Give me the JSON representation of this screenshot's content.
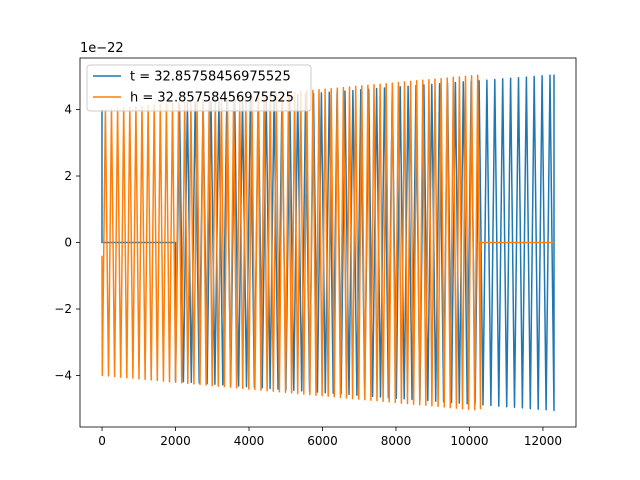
{
  "chart_data": {
    "type": "line",
    "title": "",
    "xlabel": "",
    "ylabel": "",
    "y_offset_label": "1e−22",
    "xlim": [
      -600,
      12900
    ],
    "ylim": [
      -5.55,
      5.55
    ],
    "x_ticks": [
      0,
      2000,
      4000,
      6000,
      8000,
      10000,
      12000
    ],
    "x_tick_labels": [
      "0",
      "2000",
      "4000",
      "6000",
      "8000",
      "10000",
      "12000"
    ],
    "y_ticks": [
      -4,
      -2,
      0,
      2,
      4
    ],
    "y_tick_labels": [
      "−4",
      "−2",
      "0",
      "2",
      "4"
    ],
    "grid": false,
    "legend_position": "upper-left",
    "series": [
      {
        "name": "t = 32.85758456975525",
        "color": "#1f77b4",
        "description_points": {
          "x_start": 0,
          "x_end": 12300,
          "zero_segment": [
            0,
            2000
          ],
          "amplitude_start": 4.0,
          "amplitude_end": 5.05
        }
      },
      {
        "name": "h = 32.85758456975525",
        "color": "#ff7f0e",
        "description_points": {
          "x_start": 0,
          "x_end": 10300,
          "zero_segment": [
            10300,
            12300
          ],
          "amplitude_start": 4.0,
          "amplitude_end": 5.05
        }
      }
    ]
  }
}
